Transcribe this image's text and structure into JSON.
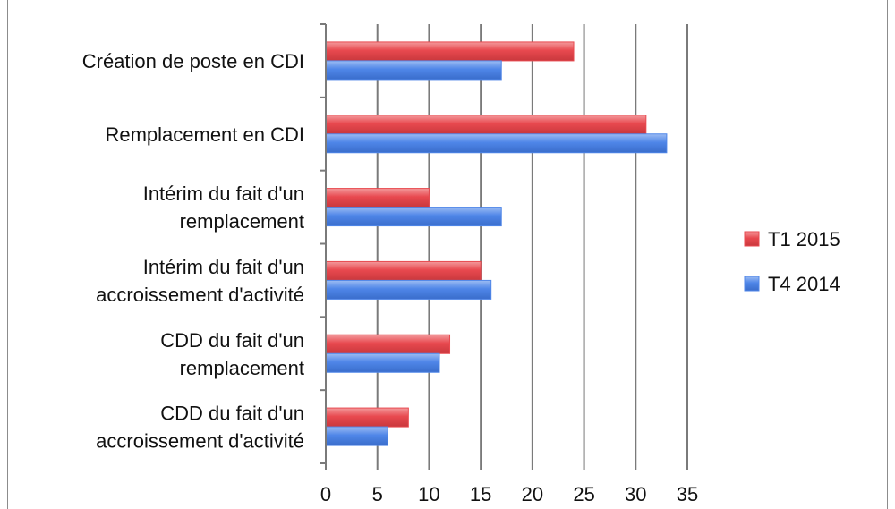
{
  "chart_data": {
    "type": "bar",
    "orientation": "horizontal",
    "categories": [
      [
        "Création de poste en CDI"
      ],
      [
        "Remplacement en CDI"
      ],
      [
        "Intérim du fait d'un",
        "remplacement"
      ],
      [
        "Intérim du fait d'un",
        "accroissement d'activité"
      ],
      [
        "CDD du fait d'un",
        "remplacement"
      ],
      [
        "CDD du fait d'un",
        "accroissement d'activité"
      ]
    ],
    "series": [
      {
        "name": "T1 2015",
        "color": "#e8494f",
        "values": [
          24,
          31,
          10,
          15,
          12,
          8
        ]
      },
      {
        "name": "T4 2014",
        "color": "#4f86e8",
        "values": [
          17,
          33,
          17,
          16,
          11,
          6
        ]
      }
    ],
    "xlim": [
      0,
      35
    ],
    "xticks": [
      "0",
      "5",
      "10",
      "15",
      "20",
      "25",
      "30",
      "35"
    ],
    "grid": true,
    "legend_position": "right"
  }
}
